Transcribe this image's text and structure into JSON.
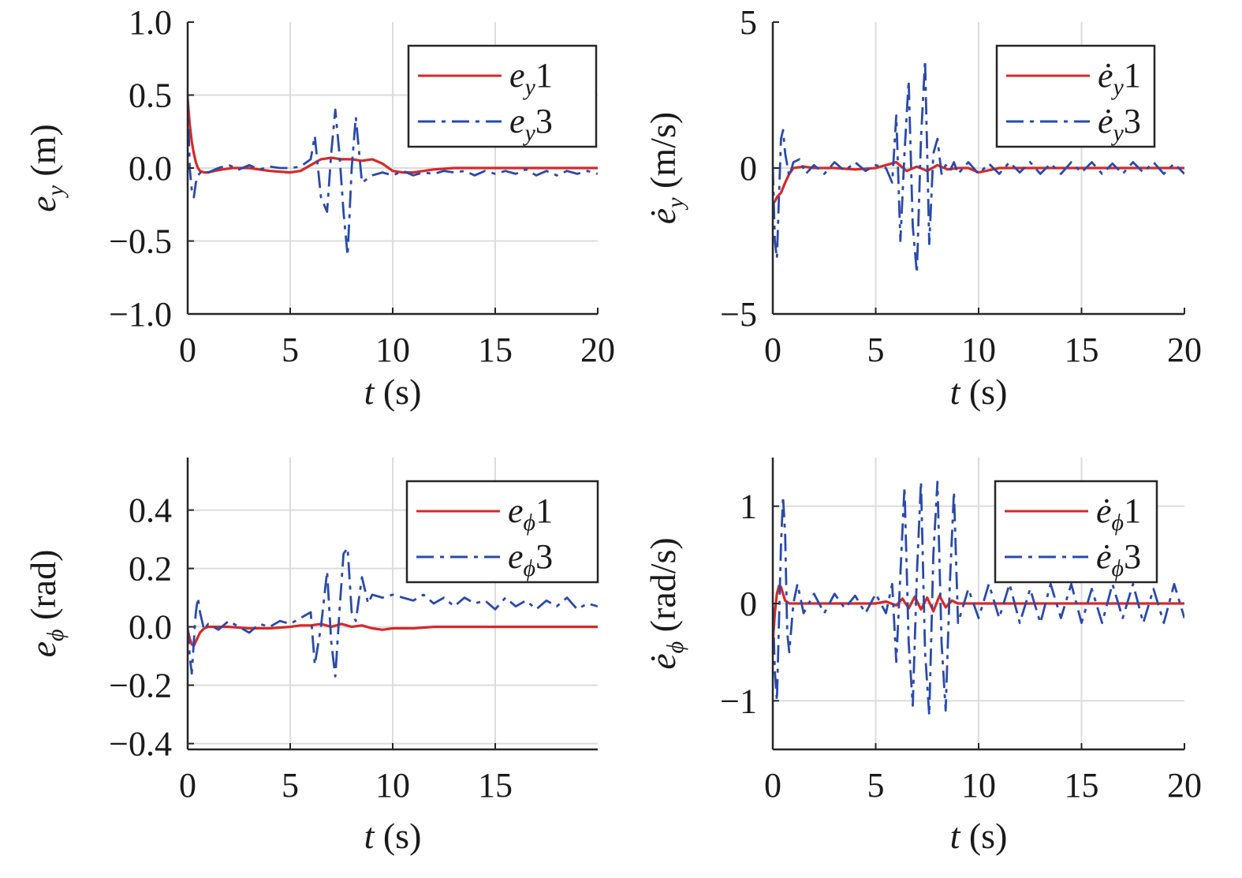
{
  "colors": {
    "series1": "#d42a2a",
    "series3": "#2a4aa8",
    "grid": "#dcdcdc",
    "axis": "#262626"
  },
  "chart_data": [
    {
      "id": "ey",
      "type": "line",
      "ylabel": {
        "base": "e",
        "sub": "y",
        "dot": false,
        "unit": " (m)"
      },
      "xlabel": {
        "var": "t",
        "unit": " (s)"
      },
      "xlim": [
        0,
        20
      ],
      "ylim": [
        -1.0,
        1.0
      ],
      "xticks": [
        0,
        5,
        10,
        15,
        20
      ],
      "xtick_labels": [
        "0",
        "5",
        "10",
        "15",
        "20"
      ],
      "yticks": [
        1.0,
        0.5,
        0.0,
        -0.5,
        -1.0
      ],
      "ytick_labels": [
        "1.0",
        "0.5",
        "0.0",
        "−0.5",
        "−1.0"
      ],
      "grid": true,
      "legend_position": "top-right",
      "series": [
        {
          "name": "1",
          "legend": {
            "base": "e",
            "sub": "y",
            "dot": false,
            "suffix": "1"
          },
          "style": "solid",
          "x": [
            0,
            0.1,
            0.2,
            0.3,
            0.4,
            0.5,
            0.6,
            0.8,
            1.0,
            1.3,
            1.7,
            2.2,
            3.0,
            4.0,
            5.0,
            5.5,
            6.0,
            6.5,
            7.0,
            7.5,
            8.0,
            8.5,
            9.0,
            9.5,
            10.0,
            10.5,
            11.0,
            11.5,
            12.0,
            13.0,
            14.0,
            15.0,
            16.0,
            17.0,
            18.0,
            19.0,
            20.0
          ],
          "y": [
            0.47,
            0.3,
            0.18,
            0.1,
            0.04,
            0.0,
            -0.02,
            -0.03,
            -0.03,
            -0.02,
            -0.01,
            0.0,
            0.0,
            -0.02,
            -0.03,
            -0.02,
            0.02,
            0.06,
            0.07,
            0.06,
            0.06,
            0.05,
            0.06,
            0.03,
            -0.02,
            -0.03,
            -0.03,
            -0.02,
            -0.01,
            0.0,
            0.0,
            0.0,
            0.0,
            0.0,
            0.0,
            0.0,
            0.0
          ]
        },
        {
          "name": "3",
          "legend": {
            "base": "e",
            "sub": "y",
            "dot": false,
            "suffix": "3"
          },
          "style": "dashdot",
          "x": [
            0,
            0.1,
            0.2,
            0.3,
            0.4,
            0.5,
            0.7,
            1.0,
            1.5,
            2.0,
            2.5,
            3.0,
            3.5,
            4.0,
            4.5,
            5.0,
            5.5,
            6.0,
            6.2,
            6.5,
            6.8,
            7.0,
            7.2,
            7.4,
            7.6,
            7.8,
            8.0,
            8.2,
            8.5,
            9.0,
            9.5,
            10.0,
            10.5,
            11.0,
            11.5,
            12.0,
            12.5,
            13.0,
            13.5,
            14.0,
            14.5,
            15.0,
            15.5,
            16.0,
            16.5,
            17.0,
            17.5,
            18.0,
            18.5,
            19.0,
            19.5,
            20.0
          ],
          "y": [
            0.5,
            0.0,
            -0.15,
            -0.2,
            -0.1,
            -0.05,
            -0.02,
            -0.03,
            0.0,
            0.02,
            -0.01,
            0.02,
            -0.01,
            0.01,
            0.0,
            0.0,
            0.01,
            0.06,
            0.22,
            -0.2,
            -0.3,
            0.1,
            0.4,
            0.1,
            -0.3,
            -0.6,
            0.0,
            0.35,
            -0.1,
            -0.05,
            -0.03,
            -0.05,
            -0.02,
            -0.05,
            -0.03,
            -0.04,
            -0.02,
            -0.03,
            -0.02,
            -0.05,
            -0.02,
            -0.04,
            -0.02,
            -0.04,
            -0.01,
            -0.05,
            -0.02,
            -0.05,
            -0.02,
            -0.04,
            -0.02,
            -0.04
          ]
        }
      ]
    },
    {
      "id": "eydot",
      "type": "line",
      "ylabel": {
        "base": "e",
        "sub": "y",
        "dot": true,
        "unit": " (m/s)"
      },
      "xlabel": {
        "var": "t",
        "unit": " (s)"
      },
      "xlim": [
        0,
        20
      ],
      "ylim": [
        -5,
        5
      ],
      "xticks": [
        0,
        5,
        10,
        15,
        20
      ],
      "xtick_labels": [
        "0",
        "5",
        "10",
        "15",
        "20"
      ],
      "yticks": [
        5,
        0,
        -5
      ],
      "ytick_labels": [
        "5",
        "0",
        "−5"
      ],
      "grid": true,
      "legend_position": "top-right",
      "series": [
        {
          "name": "1",
          "legend": {
            "base": "e",
            "sub": "y",
            "dot": true,
            "suffix": "1"
          },
          "style": "solid",
          "x": [
            0,
            0.1,
            0.2,
            0.4,
            0.6,
            0.8,
            1.0,
            1.5,
            2.0,
            3.0,
            4.0,
            5.0,
            5.5,
            6.0,
            6.5,
            7.0,
            7.5,
            8.0,
            8.5,
            9.0,
            9.5,
            10.0,
            11.0,
            12.0,
            13.0,
            14.0,
            15.0,
            16.0,
            17.0,
            18.0,
            19.0,
            20.0
          ],
          "y": [
            -1.2,
            -1.15,
            -1.0,
            -0.85,
            -0.5,
            -0.2,
            0.0,
            0.05,
            0.0,
            0.0,
            -0.05,
            0.0,
            0.1,
            0.2,
            -0.1,
            0.05,
            -0.1,
            0.1,
            -0.05,
            0.0,
            0.0,
            -0.15,
            0.0,
            0.0,
            0.0,
            0.0,
            0.0,
            0.0,
            0.0,
            0.0,
            0.0,
            0.0
          ]
        },
        {
          "name": "3",
          "legend": {
            "base": "e",
            "sub": "y",
            "dot": true,
            "suffix": "3"
          },
          "style": "dashdot",
          "x": [
            0,
            0.1,
            0.2,
            0.3,
            0.4,
            0.5,
            0.6,
            0.8,
            1.0,
            1.3,
            1.6,
            2.0,
            2.5,
            3.0,
            3.5,
            4.0,
            4.5,
            5.0,
            5.5,
            5.8,
            6.0,
            6.2,
            6.4,
            6.6,
            6.8,
            7.0,
            7.2,
            7.4,
            7.6,
            7.8,
            8.0,
            8.2,
            8.4,
            8.6,
            8.8,
            9.0,
            9.5,
            10.0,
            10.5,
            11.0,
            11.5,
            12.0,
            12.5,
            13.0,
            13.5,
            14.0,
            14.5,
            15.0,
            15.5,
            16.0,
            16.5,
            17.0,
            17.5,
            18.0,
            18.5,
            19.0,
            19.5,
            20.0
          ],
          "y": [
            0.0,
            -2.5,
            -3.1,
            -1.0,
            1.0,
            1.3,
            0.5,
            -0.3,
            0.2,
            0.3,
            -0.2,
            0.1,
            -0.2,
            0.2,
            -0.1,
            0.2,
            -0.1,
            0.1,
            0.0,
            -0.5,
            1.8,
            -2.5,
            0.5,
            3.0,
            -2.0,
            -3.6,
            1.0,
            3.7,
            -2.6,
            0.5,
            1.0,
            -0.2,
            0.1,
            -0.1,
            0.2,
            -0.2,
            0.2,
            -0.2,
            0.15,
            -0.2,
            0.2,
            -0.15,
            0.2,
            -0.2,
            0.15,
            -0.2,
            0.2,
            -0.15,
            0.2,
            -0.2,
            0.15,
            -0.2,
            0.2,
            -0.15,
            0.2,
            -0.2,
            0.15,
            -0.2
          ]
        }
      ]
    },
    {
      "id": "ephi",
      "type": "line",
      "ylabel": {
        "base": "e",
        "sub": "ϕ",
        "dot": false,
        "unit": " (rad)"
      },
      "xlabel": {
        "var": "t",
        "unit": " (s)"
      },
      "xlim": [
        0,
        20
      ],
      "ylim": [
        -0.42,
        0.58
      ],
      "xticks": [
        0,
        5,
        10,
        15
      ],
      "xtick_labels": [
        "0",
        "5",
        "10",
        "15"
      ],
      "yticks": [
        0.4,
        0.2,
        0.0,
        -0.2,
        -0.4
      ],
      "ytick_labels": [
        "0.4",
        "0.2",
        "0.0",
        "−0.2",
        "−0.4"
      ],
      "grid": true,
      "legend_position": "top-right",
      "series": [
        {
          "name": "1",
          "legend": {
            "base": "e",
            "sub": "ϕ",
            "dot": false,
            "suffix": "1"
          },
          "style": "solid",
          "x": [
            0,
            0.1,
            0.2,
            0.3,
            0.4,
            0.6,
            0.8,
            1.0,
            1.5,
            2.0,
            3.0,
            4.0,
            5.0,
            5.5,
            6.0,
            6.5,
            7.0,
            7.5,
            8.0,
            8.5,
            9.0,
            9.5,
            10.0,
            11.0,
            12.0,
            13.0,
            14.0,
            15.0,
            16.0,
            17.0,
            18.0,
            19.0,
            20.0
          ],
          "y": [
            -0.01,
            -0.04,
            -0.06,
            -0.065,
            -0.05,
            -0.02,
            -0.005,
            0.0,
            0.0,
            0.0,
            -0.005,
            -0.005,
            0.0,
            0.005,
            0.005,
            0.01,
            0.0,
            0.01,
            0.0,
            0.005,
            -0.005,
            -0.01,
            -0.005,
            -0.005,
            0.0,
            0.0,
            0.0,
            0.0,
            0.0,
            0.0,
            0.0,
            0.0,
            0.0
          ]
        },
        {
          "name": "3",
          "legend": {
            "base": "e",
            "sub": "ϕ",
            "dot": false,
            "suffix": "3"
          },
          "style": "dashdot",
          "x": [
            0,
            0.1,
            0.2,
            0.3,
            0.4,
            0.5,
            0.6,
            0.8,
            1.0,
            1.5,
            2.0,
            2.5,
            3.0,
            3.5,
            4.0,
            4.5,
            5.0,
            5.5,
            6.0,
            6.2,
            6.5,
            6.8,
            7.0,
            7.2,
            7.4,
            7.6,
            7.8,
            8.0,
            8.2,
            8.5,
            8.8,
            9.0,
            9.5,
            10.0,
            10.5,
            11.0,
            11.5,
            12.0,
            12.5,
            13.0,
            13.5,
            14.0,
            14.5,
            15.0,
            15.5,
            16.0,
            16.5,
            17.0,
            17.5,
            18.0,
            18.5,
            19.0,
            19.5,
            20.0
          ],
          "y": [
            0.0,
            -0.1,
            -0.16,
            -0.05,
            0.05,
            0.1,
            0.05,
            -0.01,
            0.01,
            -0.01,
            0.02,
            0.0,
            -0.02,
            0.01,
            0.0,
            0.02,
            0.01,
            0.03,
            0.05,
            -0.13,
            0.0,
            0.19,
            -0.05,
            -0.17,
            0.05,
            0.25,
            0.27,
            0.05,
            0.02,
            0.17,
            0.08,
            0.11,
            0.1,
            0.11,
            0.1,
            0.09,
            0.11,
            0.08,
            0.1,
            0.07,
            0.1,
            0.08,
            0.09,
            0.06,
            0.1,
            0.07,
            0.09,
            0.06,
            0.09,
            0.07,
            0.1,
            0.06,
            0.08,
            0.07
          ]
        }
      ]
    },
    {
      "id": "ephidot",
      "type": "line",
      "ylabel": {
        "base": "e",
        "sub": "ϕ",
        "dot": true,
        "unit": " (rad/s)"
      },
      "xlabel": {
        "var": "t",
        "unit": " (s)"
      },
      "xlim": [
        0,
        20
      ],
      "ylim": [
        -1.5,
        1.5
      ],
      "xticks": [
        0,
        5,
        10,
        15,
        20
      ],
      "xtick_labels": [
        "0",
        "5",
        "10",
        "15",
        "20"
      ],
      "yticks": [
        1,
        0,
        -1
      ],
      "ytick_labels": [
        "1",
        "0",
        "−1"
      ],
      "grid": true,
      "legend_position": "top-right",
      "series": [
        {
          "name": "1",
          "legend": {
            "base": "e",
            "sub": "ϕ",
            "dot": true,
            "suffix": "1"
          },
          "style": "solid",
          "x": [
            0,
            0.1,
            0.2,
            0.3,
            0.4,
            0.5,
            0.6,
            0.8,
            1.0,
            1.5,
            2.0,
            3.0,
            4.0,
            5.0,
            5.5,
            6.0,
            6.3,
            6.6,
            6.9,
            7.2,
            7.5,
            7.8,
            8.1,
            8.4,
            8.7,
            9.0,
            9.5,
            10.0,
            11.0,
            12.0,
            13.0,
            14.0,
            15.0,
            16.0,
            17.0,
            18.0,
            19.0,
            20.0
          ],
          "y": [
            -0.4,
            -0.1,
            0.1,
            0.18,
            0.17,
            0.1,
            0.03,
            0.0,
            0.0,
            0.0,
            0.0,
            0.0,
            0.0,
            0.0,
            0.02,
            -0.02,
            0.05,
            -0.05,
            0.07,
            -0.06,
            0.06,
            -0.08,
            0.08,
            -0.04,
            0.03,
            0.0,
            0.0,
            0.0,
            0.0,
            0.0,
            0.0,
            0.0,
            0.0,
            0.0,
            0.0,
            0.0,
            0.0,
            0.0
          ]
        },
        {
          "name": "3",
          "legend": {
            "base": "e",
            "sub": "ϕ",
            "dot": true,
            "suffix": "3"
          },
          "style": "dashdot",
          "x": [
            0,
            0.1,
            0.2,
            0.3,
            0.4,
            0.5,
            0.6,
            0.7,
            0.8,
            1.0,
            1.2,
            1.5,
            2.0,
            2.5,
            3.0,
            3.5,
            4.0,
            4.5,
            5.0,
            5.5,
            5.8,
            6.0,
            6.2,
            6.4,
            6.6,
            6.8,
            7.0,
            7.2,
            7.4,
            7.6,
            7.8,
            8.0,
            8.2,
            8.4,
            8.6,
            8.8,
            9.0,
            9.5,
            10.0,
            10.5,
            11.0,
            11.5,
            12.0,
            12.5,
            13.0,
            13.5,
            14.0,
            14.5,
            15.0,
            15.5,
            16.0,
            16.5,
            17.0,
            17.5,
            18.0,
            18.5,
            19.0,
            19.5,
            20.0
          ],
          "y": [
            0.0,
            -0.7,
            -1.0,
            -0.2,
            0.6,
            1.1,
            0.7,
            -0.3,
            -0.5,
            0.0,
            0.2,
            -0.1,
            0.1,
            -0.1,
            0.1,
            -0.05,
            0.08,
            -0.1,
            0.1,
            -0.1,
            0.2,
            -0.6,
            0.3,
            1.2,
            -0.4,
            -1.05,
            0.3,
            1.25,
            -0.5,
            -1.15,
            0.5,
            1.25,
            -0.4,
            -1.1,
            0.2,
            1.15,
            -0.2,
            0.15,
            -0.15,
            0.2,
            -0.15,
            0.2,
            -0.2,
            0.15,
            -0.2,
            0.2,
            -0.15,
            0.2,
            -0.2,
            0.15,
            -0.2,
            0.2,
            -0.15,
            0.2,
            -0.2,
            0.15,
            -0.2,
            0.2,
            -0.15
          ]
        }
      ]
    }
  ]
}
